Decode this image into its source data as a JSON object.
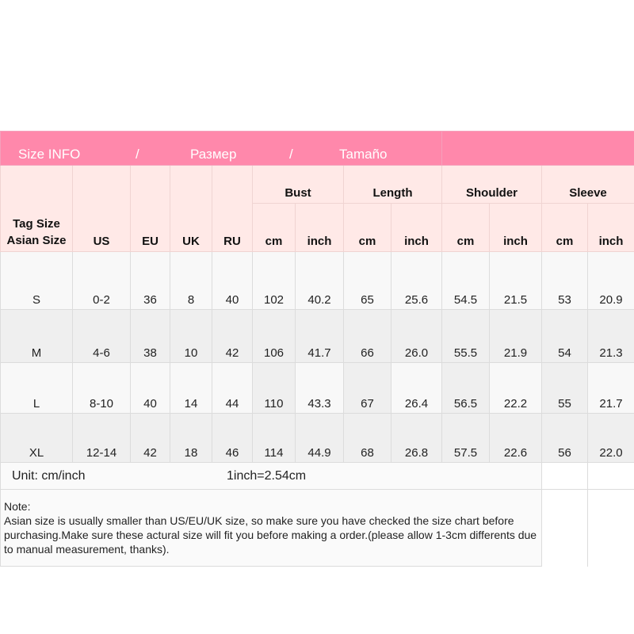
{
  "header": {
    "title_en": "Size INFO",
    "sep1": "/",
    "title_ru": "Размер",
    "sep2": "/",
    "title_es": "Tamaño"
  },
  "colors": {
    "header_pink": "#ff88ab",
    "subheader_pink": "#ffe9e7"
  },
  "columns": {
    "tag_size": "Tag Size",
    "asian_size": "Asian Size",
    "us": "US",
    "eu": "EU",
    "uk": "UK",
    "ru": "RU",
    "groups": [
      "Bust",
      "Length",
      "Shoulder",
      "Sleeve"
    ],
    "units": [
      "cm",
      "inch",
      "cm",
      "inch",
      "cm",
      "inch",
      "cm",
      "inch"
    ]
  },
  "rows": [
    {
      "size": "S",
      "cells": [
        "0-2",
        "36",
        "8",
        "40",
        "102",
        "40.2",
        "65",
        "25.6",
        "54.5",
        "21.5",
        "53",
        "20.9"
      ]
    },
    {
      "size": "M",
      "cells": [
        "4-6",
        "38",
        "10",
        "42",
        "106",
        "41.7",
        "66",
        "26.0",
        "55.5",
        "21.9",
        "54",
        "21.3"
      ]
    },
    {
      "size": "L",
      "cells": [
        "8-10",
        "40",
        "14",
        "44",
        "110",
        "43.3",
        "67",
        "26.4",
        "56.5",
        "22.2",
        "55",
        "21.7"
      ]
    },
    {
      "size": "XL",
      "cells": [
        "12-14",
        "42",
        "18",
        "46",
        "114",
        "44.9",
        "68",
        "26.8",
        "57.5",
        "22.6",
        "56",
        "22.0"
      ]
    }
  ],
  "unit": {
    "label": "Unit: cm/inch",
    "conversion": "1inch=2.54cm"
  },
  "note": {
    "title": "Note:",
    "text": "Asian size is usually smaller than US/EU/UK size, so make sure you have checked the size chart before purchasing.Make sure these actural size will fit you before making a order.(please allow 1-3cm differents due to manual measurement, thanks)."
  }
}
